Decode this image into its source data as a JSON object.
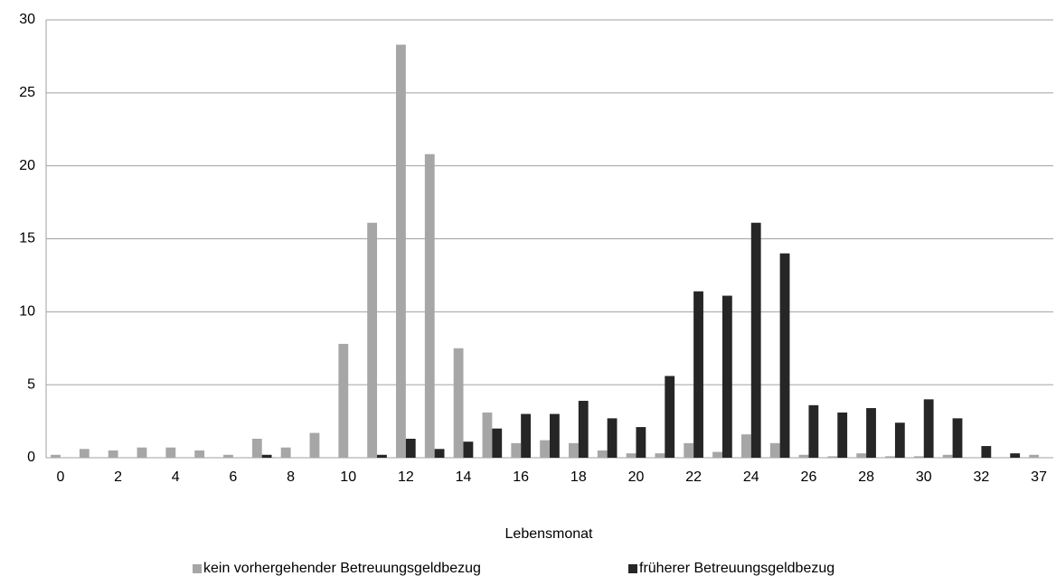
{
  "chart_data": {
    "type": "bar",
    "x_label": "Lebensmonat",
    "categories": [
      "0",
      null,
      "2",
      null,
      "4",
      null,
      "6",
      null,
      "8",
      null,
      "10",
      null,
      "12",
      null,
      "14",
      null,
      "16",
      null,
      "18",
      null,
      "20",
      null,
      "22",
      null,
      "24",
      null,
      "26",
      null,
      "28",
      null,
      "30",
      null,
      "32",
      null,
      "37"
    ],
    "series": [
      {
        "name": "kein vorhergehender Betreuungsgeldbezug",
        "color": "#a6a6a6",
        "values": [
          0.2,
          0.6,
          0.5,
          0.7,
          0.7,
          0.5,
          0.2,
          1.3,
          0.7,
          1.7,
          7.8,
          16.1,
          28.3,
          20.8,
          7.5,
          3.1,
          1.0,
          1.2,
          1.0,
          0.5,
          0.3,
          0.3,
          1.0,
          0.4,
          1.6,
          1.0,
          0.2,
          0.1,
          0.3,
          0.1,
          0.1,
          0.2,
          0,
          0,
          0.2
        ]
      },
      {
        "name": "früherer Betreuungsgeldbezug",
        "color": "#262626",
        "values": [
          0,
          0,
          0,
          0,
          0,
          0,
          0,
          0.2,
          0,
          0,
          0,
          0.2,
          1.3,
          0.6,
          1.1,
          2.0,
          3.0,
          3.0,
          3.9,
          2.7,
          2.1,
          5.6,
          11.4,
          11.1,
          16.1,
          14.0,
          3.6,
          3.1,
          3.4,
          2.4,
          4.0,
          2.7,
          0.8,
          0.3,
          0
        ]
      }
    ],
    "ylim": [
      0,
      30
    ],
    "yticks": [
      0,
      5,
      10,
      15,
      20,
      25,
      30
    ],
    "grid": true,
    "legend": "bottom"
  }
}
